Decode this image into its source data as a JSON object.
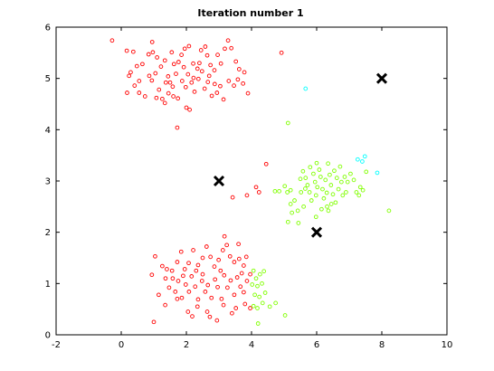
{
  "chart_data": {
    "type": "scatter",
    "title": "Iteration number 1",
    "xlabel": "",
    "ylabel": "",
    "xlim": [
      -2,
      10
    ],
    "ylim": [
      0,
      6
    ],
    "xticks": [
      -2,
      0,
      2,
      4,
      6,
      8,
      10
    ],
    "yticks": [
      0,
      1,
      2,
      3,
      4,
      5,
      6
    ],
    "grid": false,
    "legend": "none",
    "colors": {
      "cluster1": "#ff0000",
      "cluster2": "#80ff00",
      "cluster3": "#00ffff",
      "centroid": "#000000"
    },
    "series": [
      {
        "color": "#ff0000",
        "points": [
          [
            -0.28,
            5.74
          ],
          [
            0.17,
            5.54
          ],
          [
            0.29,
            5.12
          ],
          [
            0.37,
            5.52
          ],
          [
            0.48,
            5.24
          ],
          [
            0.65,
            5.28
          ],
          [
            0.84,
            5.47
          ],
          [
            0.97,
            5.51
          ],
          [
            0.95,
            5.71
          ],
          [
            1.1,
            5.41
          ],
          [
            1.22,
            5.23
          ],
          [
            1.34,
            5.35
          ],
          [
            1.44,
            5.04
          ],
          [
            1.55,
            5.51
          ],
          [
            1.62,
            5.28
          ],
          [
            1.76,
            5.32
          ],
          [
            1.85,
            5.46
          ],
          [
            1.95,
            5.58
          ],
          [
            2.08,
            5.63
          ],
          [
            2.21,
            5.29
          ],
          [
            2.34,
            5.19
          ],
          [
            2.45,
            5.55
          ],
          [
            2.58,
            5.62
          ],
          [
            2.64,
            5.45
          ],
          [
            2.74,
            5.26
          ],
          [
            2.86,
            5.16
          ],
          [
            2.96,
            5.46
          ],
          [
            3.06,
            5.29
          ],
          [
            3.18,
            5.58
          ],
          [
            3.28,
            5.74
          ],
          [
            3.38,
            5.59
          ],
          [
            3.52,
            5.33
          ],
          [
            3.62,
            5.18
          ],
          [
            3.78,
            5.12
          ],
          [
            4.92,
            5.5
          ],
          [
            0.24,
            5.05
          ],
          [
            0.41,
            4.86
          ],
          [
            0.55,
            4.95
          ],
          [
            0.73,
            4.65
          ],
          [
            0.18,
            4.72
          ],
          [
            0.94,
            4.96
          ],
          [
            1.05,
            5.1
          ],
          [
            1.16,
            4.78
          ],
          [
            1.26,
            4.6
          ],
          [
            1.37,
            4.92
          ],
          [
            1.45,
            4.71
          ],
          [
            1.58,
            4.84
          ],
          [
            1.68,
            5.09
          ],
          [
            1.74,
            4.61
          ],
          [
            1.87,
            4.95
          ],
          [
            1.98,
            4.83
          ],
          [
            2.05,
            5.08
          ],
          [
            2.16,
            4.92
          ],
          [
            2.25,
            4.74
          ],
          [
            2.37,
            4.99
          ],
          [
            2.48,
            5.14
          ],
          [
            2.56,
            4.8
          ],
          [
            2.66,
            4.93
          ],
          [
            2.78,
            4.66
          ],
          [
            2.87,
            4.89
          ],
          [
            2.94,
            4.72
          ],
          [
            3.04,
            4.85
          ],
          [
            3.14,
            4.59
          ],
          [
            3.3,
            4.95
          ],
          [
            3.46,
            4.86
          ],
          [
            3.58,
            4.98
          ],
          [
            3.74,
            4.9
          ],
          [
            3.89,
            4.71
          ],
          [
            0.55,
            4.72
          ],
          [
            1.08,
            4.62
          ],
          [
            1.34,
            4.52
          ],
          [
            2.0,
            4.43
          ],
          [
            2.1,
            4.39
          ],
          [
            1.72,
            4.04
          ],
          [
            2.22,
            5.01
          ],
          [
            1.92,
            5.22
          ],
          [
            1.5,
            4.92
          ],
          [
            0.86,
            5.05
          ],
          [
            2.4,
            5.3
          ],
          [
            2.7,
            5.05
          ],
          [
            1.6,
            4.65
          ],
          [
            3.42,
            2.68
          ],
          [
            3.86,
            2.72
          ],
          [
            4.14,
            2.88
          ],
          [
            4.23,
            2.78
          ],
          [
            4.45,
            3.33
          ],
          [
            1.04,
            1.53
          ],
          [
            1.26,
            1.34
          ],
          [
            1.56,
            1.25
          ],
          [
            1.72,
            1.42
          ],
          [
            1.84,
            1.62
          ],
          [
            1.95,
            1.28
          ],
          [
            2.07,
            1.4
          ],
          [
            2.21,
            1.65
          ],
          [
            2.36,
            1.36
          ],
          [
            2.5,
            1.5
          ],
          [
            2.62,
            1.72
          ],
          [
            2.74,
            1.52
          ],
          [
            2.86,
            1.33
          ],
          [
            2.99,
            1.46
          ],
          [
            3.12,
            1.65
          ],
          [
            3.24,
            1.75
          ],
          [
            3.34,
            1.53
          ],
          [
            3.47,
            1.42
          ],
          [
            3.62,
            1.48
          ],
          [
            3.76,
            1.35
          ],
          [
            3.84,
            1.52
          ],
          [
            3.6,
            1.77
          ],
          [
            3.17,
            1.92
          ],
          [
            0.94,
            1.17
          ],
          [
            1.15,
            0.78
          ],
          [
            1.36,
            1.1
          ],
          [
            1.47,
            0.92
          ],
          [
            1.58,
            1.1
          ],
          [
            1.66,
            0.84
          ],
          [
            1.75,
            1.05
          ],
          [
            1.86,
            0.72
          ],
          [
            1.98,
            0.98
          ],
          [
            2.08,
            0.84
          ],
          [
            2.16,
            1.14
          ],
          [
            2.27,
            0.94
          ],
          [
            2.36,
            0.69
          ],
          [
            2.48,
            1.05
          ],
          [
            2.58,
            0.84
          ],
          [
            2.66,
            0.97
          ],
          [
            2.77,
            0.72
          ],
          [
            2.88,
            1.08
          ],
          [
            2.96,
            0.93
          ],
          [
            3.08,
            0.7
          ],
          [
            3.16,
            1.16
          ],
          [
            3.26,
            0.92
          ],
          [
            3.36,
            1.06
          ],
          [
            3.47,
            0.78
          ],
          [
            3.56,
            1.12
          ],
          [
            3.66,
            0.94
          ],
          [
            3.76,
            0.83
          ],
          [
            3.86,
            1.05
          ],
          [
            3.96,
            1.18
          ],
          [
            1.0,
            0.25
          ],
          [
            1.35,
            0.58
          ],
          [
            1.72,
            0.7
          ],
          [
            2.05,
            0.45
          ],
          [
            2.18,
            0.36
          ],
          [
            2.34,
            0.55
          ],
          [
            2.64,
            0.45
          ],
          [
            2.72,
            0.35
          ],
          [
            2.94,
            0.28
          ],
          [
            3.14,
            0.58
          ],
          [
            3.52,
            0.52
          ],
          [
            3.8,
            0.6
          ],
          [
            3.96,
            0.52
          ],
          [
            3.4,
            0.42
          ],
          [
            2.5,
            1.18
          ],
          [
            3.05,
            1.25
          ],
          [
            1.9,
            1.15
          ],
          [
            3.7,
            1.2
          ],
          [
            2.3,
            1.25
          ],
          [
            1.4,
            1.28
          ]
        ]
      },
      {
        "color": "#80ff00",
        "points": [
          [
            5.12,
            4.13
          ],
          [
            4.72,
            2.8
          ],
          [
            4.85,
            2.8
          ],
          [
            5.02,
            2.9
          ],
          [
            5.1,
            2.78
          ],
          [
            5.2,
            2.55
          ],
          [
            5.32,
            2.62
          ],
          [
            5.24,
            2.38
          ],
          [
            5.12,
            2.2
          ],
          [
            5.42,
            2.42
          ],
          [
            5.52,
            2.78
          ],
          [
            5.5,
            3.04
          ],
          [
            5.58,
            3.19
          ],
          [
            5.66,
            3.06
          ],
          [
            5.72,
            2.92
          ],
          [
            5.8,
            3.27
          ],
          [
            5.78,
            2.78
          ],
          [
            5.84,
            2.62
          ],
          [
            5.9,
            3.14
          ],
          [
            5.95,
            2.98
          ],
          [
            5.98,
            2.72
          ],
          [
            6.02,
            2.88
          ],
          [
            6.08,
            3.22
          ],
          [
            6.12,
            3.08
          ],
          [
            6.18,
            2.84
          ],
          [
            6.22,
            2.66
          ],
          [
            6.27,
            3.02
          ],
          [
            6.31,
            2.77
          ],
          [
            6.35,
            3.34
          ],
          [
            6.4,
            3.12
          ],
          [
            6.44,
            2.92
          ],
          [
            6.5,
            2.74
          ],
          [
            6.54,
            3.2
          ],
          [
            6.58,
            2.58
          ],
          [
            6.62,
            3.06
          ],
          [
            6.67,
            2.84
          ],
          [
            6.72,
            3.28
          ],
          [
            6.76,
            2.98
          ],
          [
            6.8,
            2.72
          ],
          [
            6.86,
            3.08
          ],
          [
            6.9,
            2.78
          ],
          [
            6.95,
            2.98
          ],
          [
            7.04,
            3.14
          ],
          [
            7.14,
            3.02
          ],
          [
            7.22,
            2.78
          ],
          [
            7.3,
            2.72
          ],
          [
            7.34,
            2.88
          ],
          [
            7.42,
            2.82
          ],
          [
            7.52,
            3.18
          ],
          [
            8.22,
            2.42
          ],
          [
            5.6,
            2.5
          ],
          [
            5.98,
            2.3
          ],
          [
            6.32,
            2.5
          ],
          [
            6.36,
            2.42
          ],
          [
            5.44,
            2.18
          ],
          [
            5.2,
            2.82
          ],
          [
            6.0,
            3.35
          ],
          [
            6.15,
            2.45
          ],
          [
            6.45,
            2.55
          ],
          [
            5.65,
            2.85
          ],
          [
            4.06,
            1.25
          ],
          [
            4.14,
            1.1
          ],
          [
            4.18,
            0.95
          ],
          [
            4.26,
            1.18
          ],
          [
            4.32,
            1.0
          ],
          [
            4.42,
            0.82
          ],
          [
            4.1,
            0.78
          ],
          [
            4.24,
            0.74
          ],
          [
            4.06,
            0.56
          ],
          [
            4.18,
            0.52
          ],
          [
            4.34,
            0.62
          ],
          [
            4.56,
            0.55
          ],
          [
            4.74,
            0.62
          ],
          [
            5.03,
            0.38
          ],
          [
            4.2,
            0.22
          ],
          [
            4.02,
            0.98
          ],
          [
            4.38,
            1.24
          ]
        ]
      },
      {
        "color": "#00ffff",
        "points": [
          [
            5.66,
            4.8
          ],
          [
            7.26,
            3.42
          ],
          [
            7.4,
            3.38
          ],
          [
            7.48,
            3.48
          ],
          [
            7.86,
            3.16
          ]
        ]
      }
    ],
    "centroids": [
      [
        3,
        3
      ],
      [
        6,
        2
      ],
      [
        8,
        5
      ]
    ]
  }
}
